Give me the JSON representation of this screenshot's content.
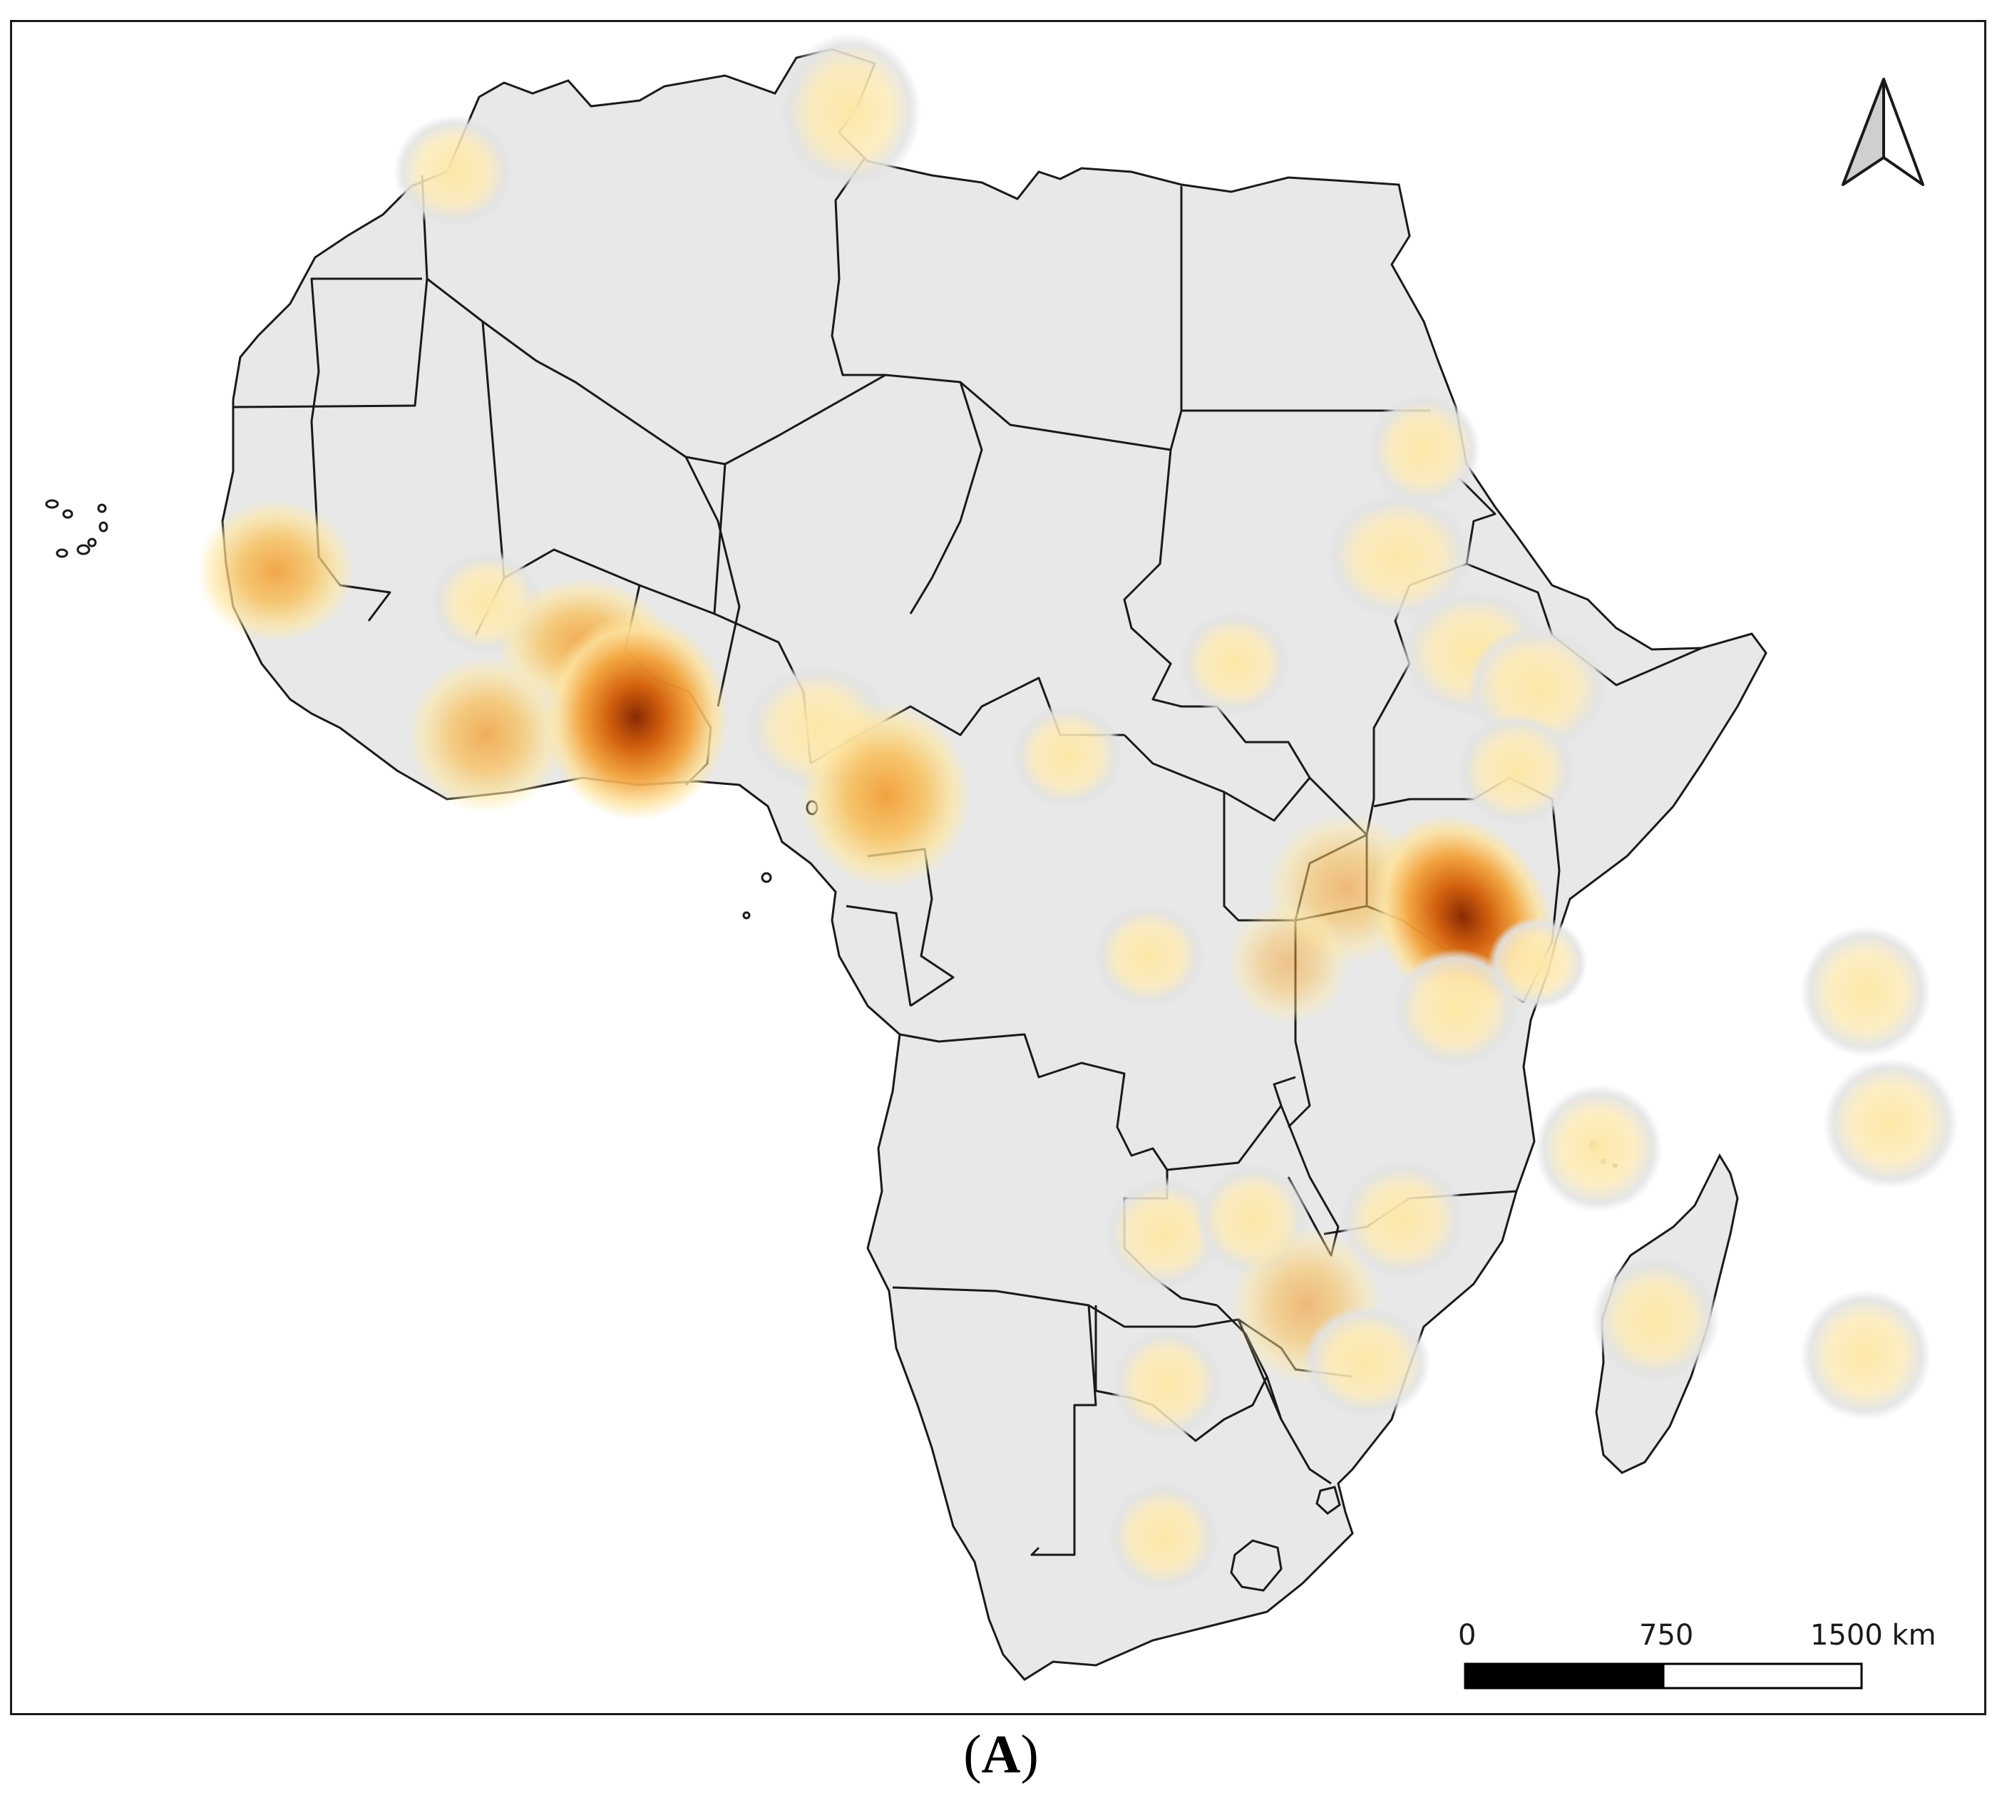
{
  "map": {
    "type": "heatmap",
    "region": "Africa",
    "land_color": "#e8e8e8",
    "border_color": "#1a1a1a",
    "heat_colors": [
      "#fde9a8",
      "#f9c25a",
      "#ee8a1c",
      "#c9500a",
      "#8a2a04"
    ],
    "north_arrow": {
      "icon": "north-arrow-icon"
    },
    "scale_bar": {
      "labels": [
        "0",
        "750",
        "1500 km"
      ]
    }
  },
  "caption": {
    "open": "(",
    "label": "A",
    "close": ")"
  }
}
